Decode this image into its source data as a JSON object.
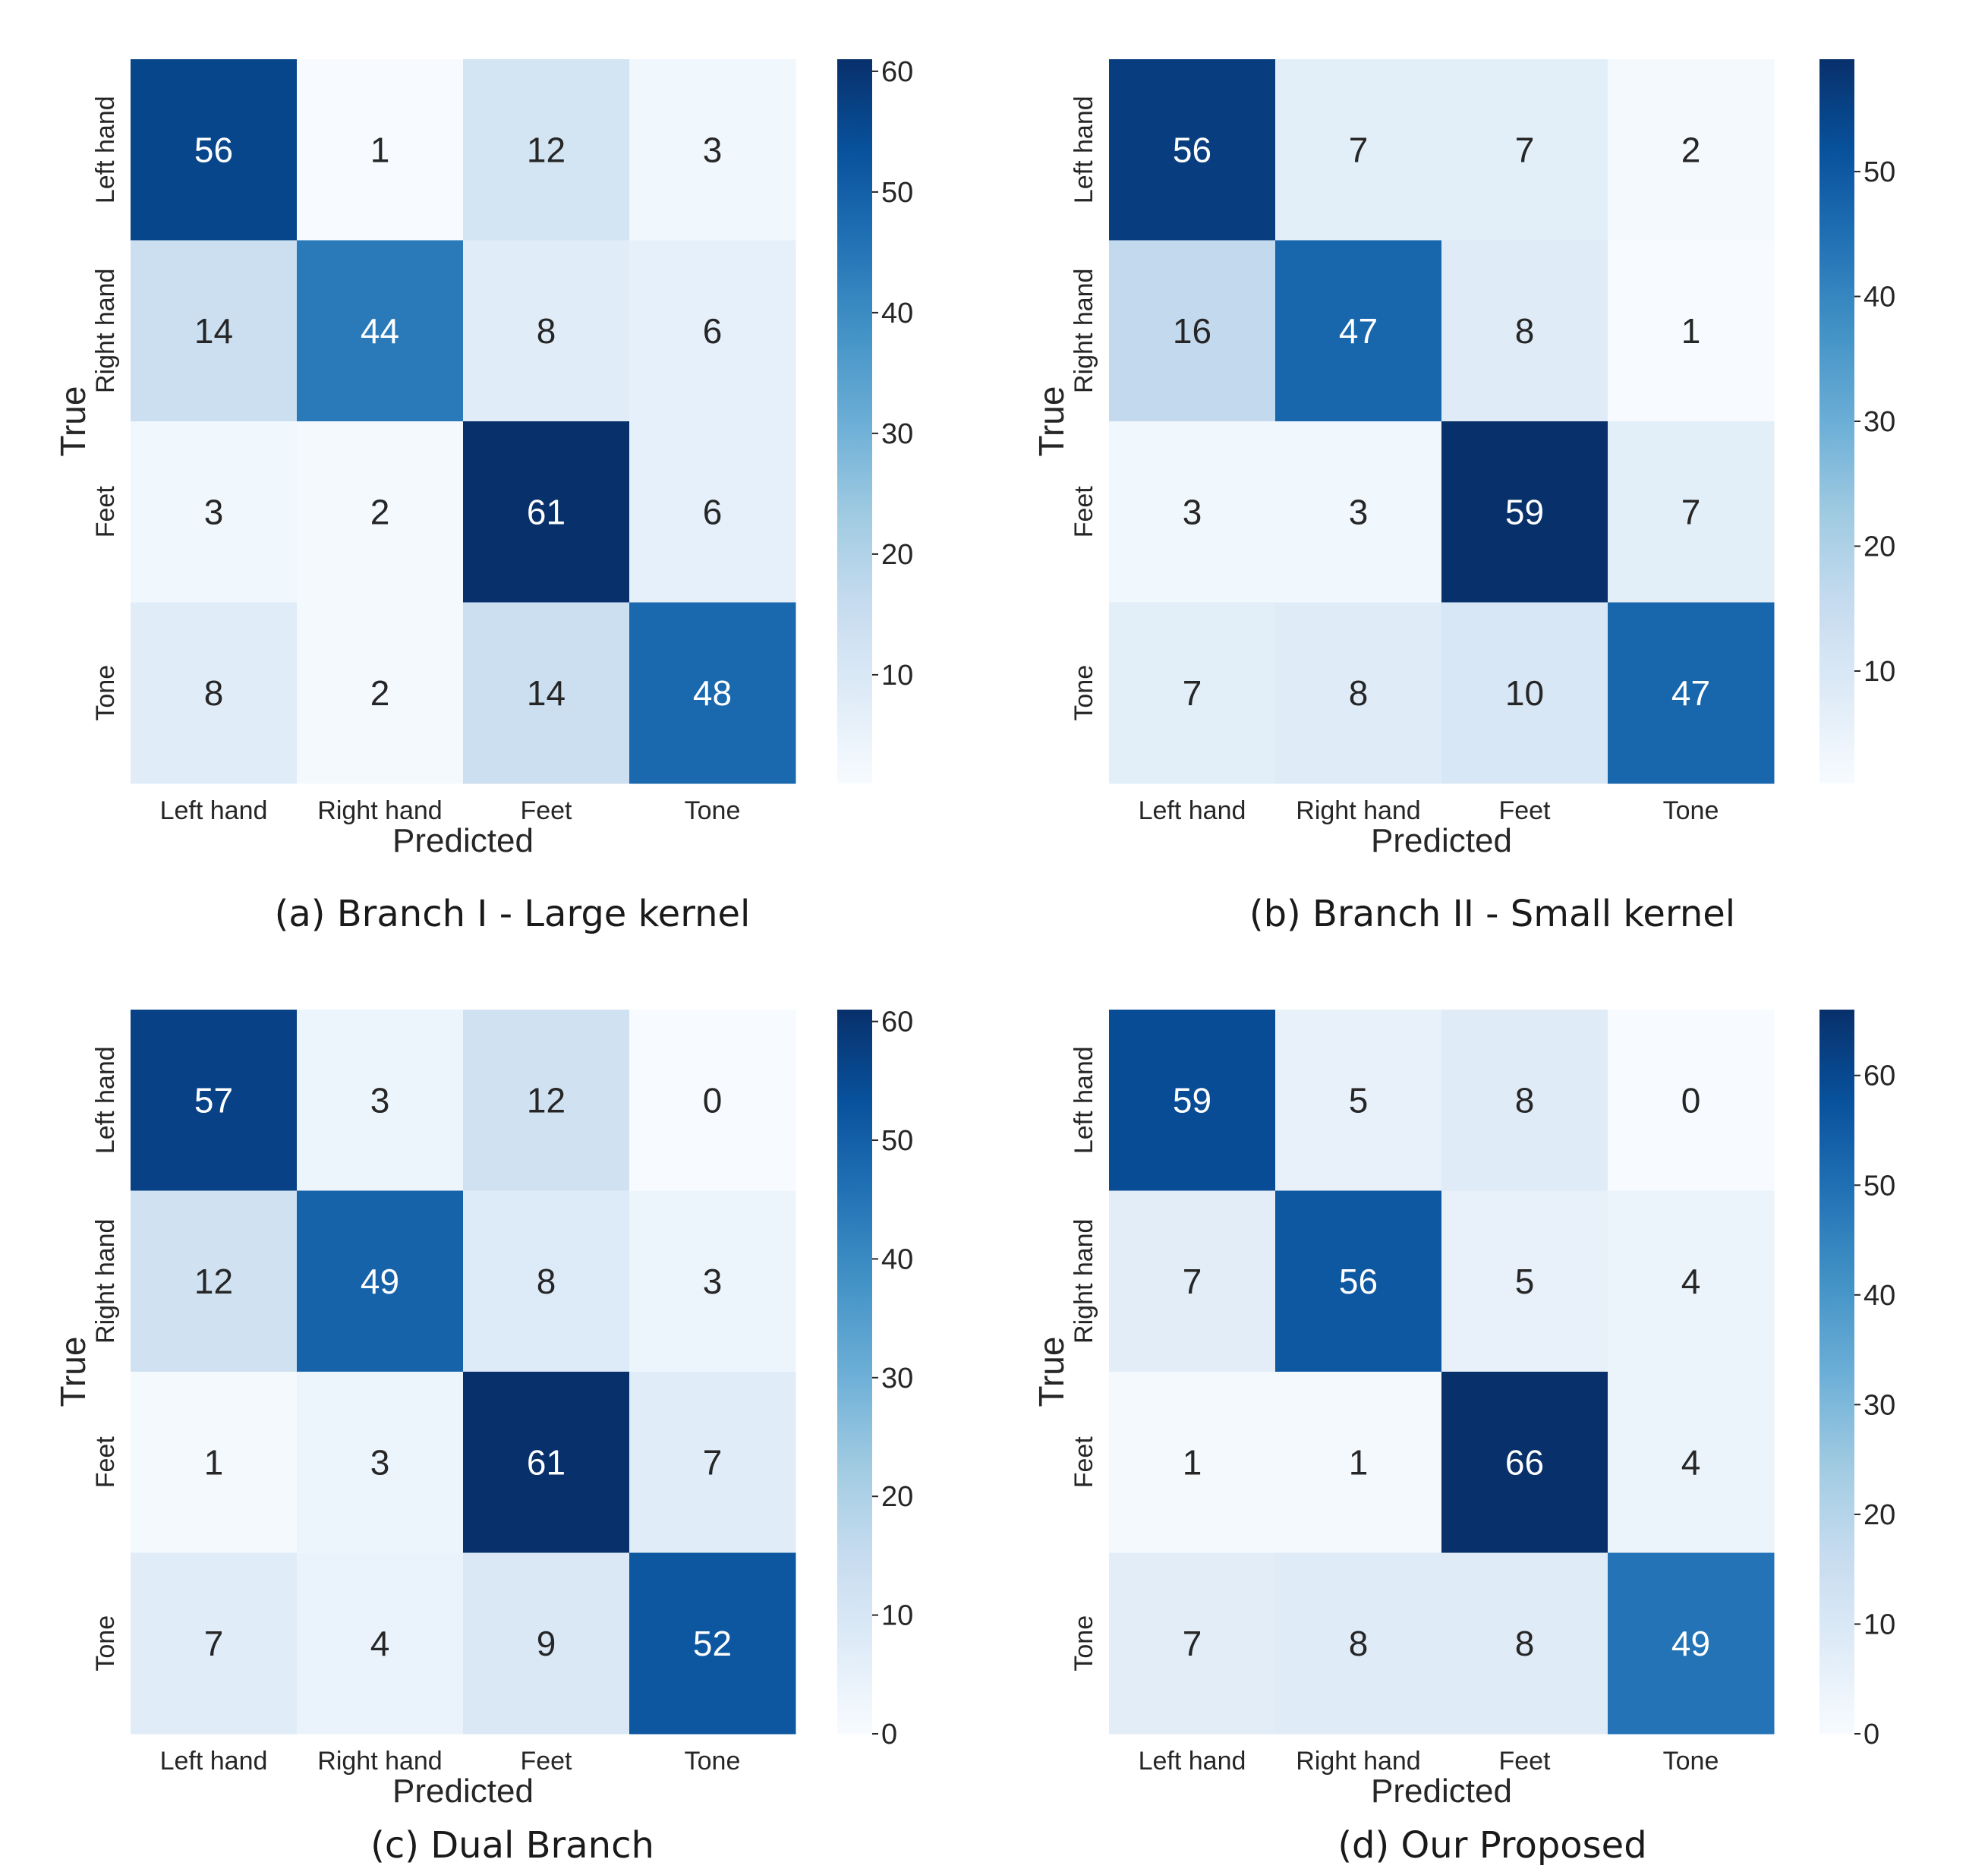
{
  "chart_data": [
    {
      "type": "heatmap",
      "title": "",
      "caption": "(a) Branch I - Large kernel",
      "xlabel": "Predicted",
      "ylabel": "True",
      "categories_x": [
        "Left hand",
        "Right hand",
        "Feet",
        "Tone"
      ],
      "categories_y": [
        "Left hand",
        "Right hand",
        "Feet",
        "Tone"
      ],
      "matrix": [
        [
          56,
          1,
          12,
          3
        ],
        [
          14,
          44,
          8,
          6
        ],
        [
          3,
          2,
          61,
          6
        ],
        [
          8,
          2,
          14,
          48
        ]
      ],
      "colorbar": {
        "min": 1,
        "max": 61,
        "ticks": [
          "10",
          "20",
          "30",
          "40",
          "50",
          "60"
        ],
        "tick_values": [
          10,
          20,
          30,
          40,
          50,
          60
        ]
      },
      "colormap": "Blues"
    },
    {
      "type": "heatmap",
      "title": "",
      "caption": "(b) Branch II - Small kernel",
      "xlabel": "Predicted",
      "ylabel": "True",
      "categories_x": [
        "Left hand",
        "Right hand",
        "Feet",
        "Tone"
      ],
      "categories_y": [
        "Left hand",
        "Right hand",
        "Feet",
        "Tone"
      ],
      "matrix": [
        [
          56,
          7,
          7,
          2
        ],
        [
          16,
          47,
          8,
          1
        ],
        [
          3,
          3,
          59,
          7
        ],
        [
          7,
          8,
          10,
          47
        ]
      ],
      "colorbar": {
        "min": 1,
        "max": 59,
        "ticks": [
          "10",
          "20",
          "30",
          "40",
          "50"
        ],
        "tick_values": [
          10,
          20,
          30,
          40,
          50
        ]
      },
      "colormap": "Blues"
    },
    {
      "type": "heatmap",
      "title": "",
      "caption": "(c) Dual Branch",
      "xlabel": "Predicted",
      "ylabel": "True",
      "categories_x": [
        "Left hand",
        "Right hand",
        "Feet",
        "Tone"
      ],
      "categories_y": [
        "Left hand",
        "Right hand",
        "Feet",
        "Tone"
      ],
      "matrix": [
        [
          57,
          3,
          12,
          0
        ],
        [
          12,
          49,
          8,
          3
        ],
        [
          1,
          3,
          61,
          7
        ],
        [
          7,
          4,
          9,
          52
        ]
      ],
      "colorbar": {
        "min": 0,
        "max": 61,
        "ticks": [
          "0",
          "10",
          "20",
          "30",
          "40",
          "50",
          "60"
        ],
        "tick_values": [
          0,
          10,
          20,
          30,
          40,
          50,
          60
        ]
      },
      "colormap": "Blues"
    },
    {
      "type": "heatmap",
      "title": "",
      "caption": "(d) Our Proposed",
      "xlabel": "Predicted",
      "ylabel": "True",
      "categories_x": [
        "Left hand",
        "Right hand",
        "Feet",
        "Tone"
      ],
      "categories_y": [
        "Left hand",
        "Right hand",
        "Feet",
        "Tone"
      ],
      "matrix": [
        [
          59,
          5,
          8,
          0
        ],
        [
          7,
          56,
          5,
          4
        ],
        [
          1,
          1,
          66,
          4
        ],
        [
          7,
          8,
          8,
          49
        ]
      ],
      "colorbar": {
        "min": 0,
        "max": 66,
        "ticks": [
          "0",
          "10",
          "20",
          "30",
          "40",
          "50",
          "60"
        ],
        "tick_values": [
          0,
          10,
          20,
          30,
          40,
          50,
          60
        ]
      },
      "colormap": "Blues"
    }
  ]
}
